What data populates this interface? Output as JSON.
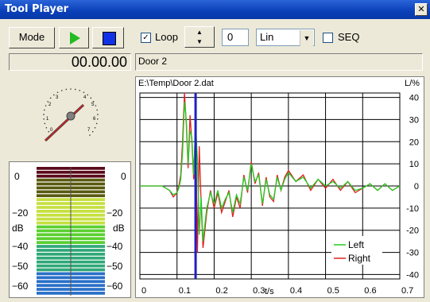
{
  "window": {
    "title": "Tool Player"
  },
  "toolbar": {
    "mode_label": "Mode",
    "loop_label": "Loop",
    "loop_checked": true,
    "counter_value": "0",
    "scale_selected": "Lin",
    "seq_label": "SEQ",
    "seq_checked": false
  },
  "time_display": "00.00.00",
  "file_name": "Door 2",
  "gauge": {
    "labels": [
      "3",
      "4",
      "2",
      "5",
      "1",
      "6",
      "0",
      "7"
    ]
  },
  "meter": {
    "left_labels": [
      "0",
      "−20",
      "dB",
      "−40",
      "−50",
      "−60"
    ],
    "right_labels": [
      "0",
      "−20",
      "dB",
      "−40",
      "−50",
      "−60"
    ]
  },
  "chart_data": {
    "type": "line",
    "title": "E:\\Temp\\Door 2.dat",
    "xlabel": "t/s",
    "ylabel": "L/%",
    "xlim": [
      0,
      0.7
    ],
    "ylim": [
      -42,
      42
    ],
    "x_ticks": [
      "0",
      "0.1",
      "0.2",
      "0.3",
      "0.4",
      "0.5",
      "0.6",
      "0.7"
    ],
    "y_ticks": [
      "40",
      "30",
      "20",
      "10",
      "0",
      "-10",
      "-20",
      "-30",
      "-40"
    ],
    "grid": true,
    "legend_position": "bottom-right",
    "cursor_x": 0.15,
    "cursor_color": "#2020c0",
    "series": [
      {
        "name": "Left",
        "color": "#22cc22",
        "x": [
          0,
          0.03,
          0.06,
          0.08,
          0.09,
          0.1,
          0.105,
          0.11,
          0.115,
          0.12,
          0.125,
          0.13,
          0.135,
          0.14,
          0.145,
          0.15,
          0.155,
          0.16,
          0.165,
          0.17,
          0.18,
          0.19,
          0.2,
          0.21,
          0.22,
          0.23,
          0.24,
          0.25,
          0.26,
          0.27,
          0.28,
          0.29,
          0.3,
          0.31,
          0.32,
          0.33,
          0.34,
          0.35,
          0.36,
          0.37,
          0.38,
          0.39,
          0.4,
          0.42,
          0.44,
          0.46,
          0.48,
          0.5,
          0.52,
          0.54,
          0.56,
          0.58,
          0.6,
          0.62,
          0.64,
          0.66,
          0.68,
          0.7
        ],
        "y": [
          0,
          0,
          0,
          -2,
          -4,
          -3,
          -1,
          3,
          15,
          38,
          30,
          10,
          25,
          22,
          5,
          28,
          12,
          -22,
          -5,
          -25,
          -10,
          -3,
          -8,
          -2,
          -10,
          -6,
          -3,
          -12,
          -4,
          -8,
          4,
          -2,
          10,
          2,
          5,
          -8,
          3,
          -4,
          -6,
          4,
          -2,
          3,
          6,
          2,
          4,
          -1,
          3,
          0,
          2,
          -1,
          2,
          -2,
          -1,
          1,
          -2,
          1,
          -2,
          0
        ]
      },
      {
        "name": "Right",
        "color": "#e02020",
        "x": [
          0,
          0.03,
          0.06,
          0.08,
          0.09,
          0.1,
          0.105,
          0.11,
          0.115,
          0.12,
          0.125,
          0.13,
          0.135,
          0.14,
          0.145,
          0.15,
          0.155,
          0.16,
          0.165,
          0.17,
          0.18,
          0.19,
          0.2,
          0.21,
          0.22,
          0.23,
          0.24,
          0.25,
          0.26,
          0.27,
          0.28,
          0.29,
          0.3,
          0.31,
          0.32,
          0.33,
          0.34,
          0.35,
          0.36,
          0.37,
          0.38,
          0.39,
          0.4,
          0.42,
          0.44,
          0.46,
          0.48,
          0.5,
          0.52,
          0.54,
          0.56,
          0.58,
          0.6,
          0.62,
          0.64,
          0.66,
          0.68,
          0.7
        ],
        "y": [
          0,
          0,
          0,
          -2,
          -5,
          -3,
          0,
          5,
          20,
          42,
          28,
          8,
          32,
          20,
          3,
          30,
          -30,
          18,
          -8,
          -28,
          -12,
          -2,
          -10,
          -3,
          -12,
          -7,
          -2,
          -14,
          -5,
          -10,
          5,
          -3,
          11,
          1,
          6,
          -9,
          4,
          -5,
          -7,
          5,
          -2,
          4,
          7,
          2,
          5,
          -2,
          3,
          -1,
          3,
          -2,
          2,
          -3,
          -1,
          1,
          -2,
          1,
          -2,
          0
        ]
      }
    ]
  }
}
